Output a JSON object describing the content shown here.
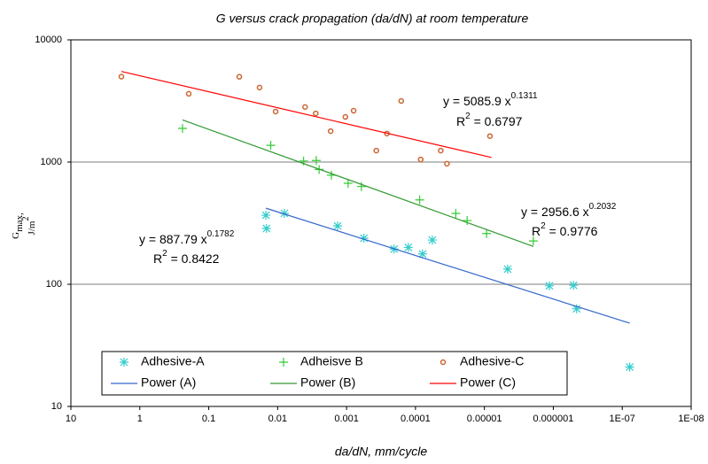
{
  "chart_data": {
    "type": "scatter",
    "title": "G versus crack propagation (da/dN) at room temperature",
    "x_label": "da/dN, mm/cycle",
    "y_label": {
      "main": "G",
      "sub": "max,",
      "unit": "J/m",
      "sup": "2"
    },
    "log_x": true,
    "log_y": true,
    "x_reversed": true,
    "xlim": [
      10,
      1e-08
    ],
    "ylim": [
      10,
      10000
    ],
    "xticks": [
      10,
      1,
      0.1,
      0.01,
      0.001,
      0.0001,
      1e-05,
      1e-06,
      {
        "value": 1e-07,
        "label": "1E-07"
      },
      {
        "value": 1e-08,
        "label": "1E-08"
      }
    ],
    "yticks": [
      10,
      100,
      1000,
      10000
    ],
    "grid": true,
    "series": [
      {
        "name": "Adhesive-A",
        "color": "#33cccc",
        "marker": "asterisk",
        "x": [
          0.0148,
          0.0145,
          0.008,
          0.00135,
          0.00056,
          0.000204,
          0.000127,
          7.9e-05,
          5.7e-05,
          4.6e-06,
          1.14e-06,
          5.1e-07,
          4.6e-07,
          7.8e-08
        ],
        "values": [
          367,
          286,
          380,
          300,
          238,
          194,
          200,
          177,
          230,
          133,
          97,
          98,
          63,
          21
        ]
      },
      {
        "name": "Adheisve B",
        "color": "#33cc33",
        "marker": "plus",
        "x": [
          0.24,
          0.0126,
          0.0042,
          0.00275,
          0.0025,
          0.00166,
          0.00095,
          0.00061,
          8.7e-05,
          2.6e-05,
          1.78e-05,
          9.3e-06,
          1.95e-06
        ],
        "values": [
          1885,
          1370,
          1020,
          1030,
          870,
          780,
          670,
          630,
          490,
          380,
          332,
          260,
          226
        ]
      },
      {
        "name": "Adhesive-C",
        "color": "#cc6633",
        "marker": "circle",
        "x": [
          1.85,
          0.195,
          0.036,
          0.0183,
          0.0107,
          0.004,
          0.0028,
          0.0017,
          0.00104,
          0.00079,
          0.00037,
          0.00026,
          0.000161,
          8.4e-05,
          4.3e-05,
          3.5e-05,
          8.3e-06
        ],
        "values": [
          5000,
          3620,
          4990,
          4070,
          2590,
          2820,
          2500,
          1790,
          2340,
          2630,
          1240,
          1710,
          3160,
          1050,
          1240,
          970,
          1630
        ]
      },
      {
        "name": "Power (A)",
        "color": "#3366cc",
        "marker": "line",
        "x": [
          0.0148,
          7.8e-08
        ],
        "values": [
          419,
          48
        ]
      },
      {
        "name": "Power (B)",
        "color": "#339933",
        "marker": "line",
        "x": [
          0.24,
          1.95e-06
        ],
        "values": [
          2212,
          204
        ]
      },
      {
        "name": "Power (C)",
        "color": "#ff0000",
        "marker": "line",
        "x": [
          1.85,
          7.9e-06
        ],
        "values": [
          5513,
          1090
        ]
      }
    ],
    "annotations": [
      {
        "text": "y = 887.79 x",
        "sup": "0.1782"
      },
      {
        "text": "R",
        "sup": "2",
        "after": " = 0.8422"
      },
      {
        "text": "y = 2956.6 x",
        "sup": "0.2032"
      },
      {
        "text": "R",
        "sup": "2",
        "after": " = 0.9776"
      },
      {
        "text": "y = 5085.9 x",
        "sup": "0.1311"
      },
      {
        "text": "R",
        "sup": "2",
        "after": " = 0.6797"
      }
    ]
  }
}
